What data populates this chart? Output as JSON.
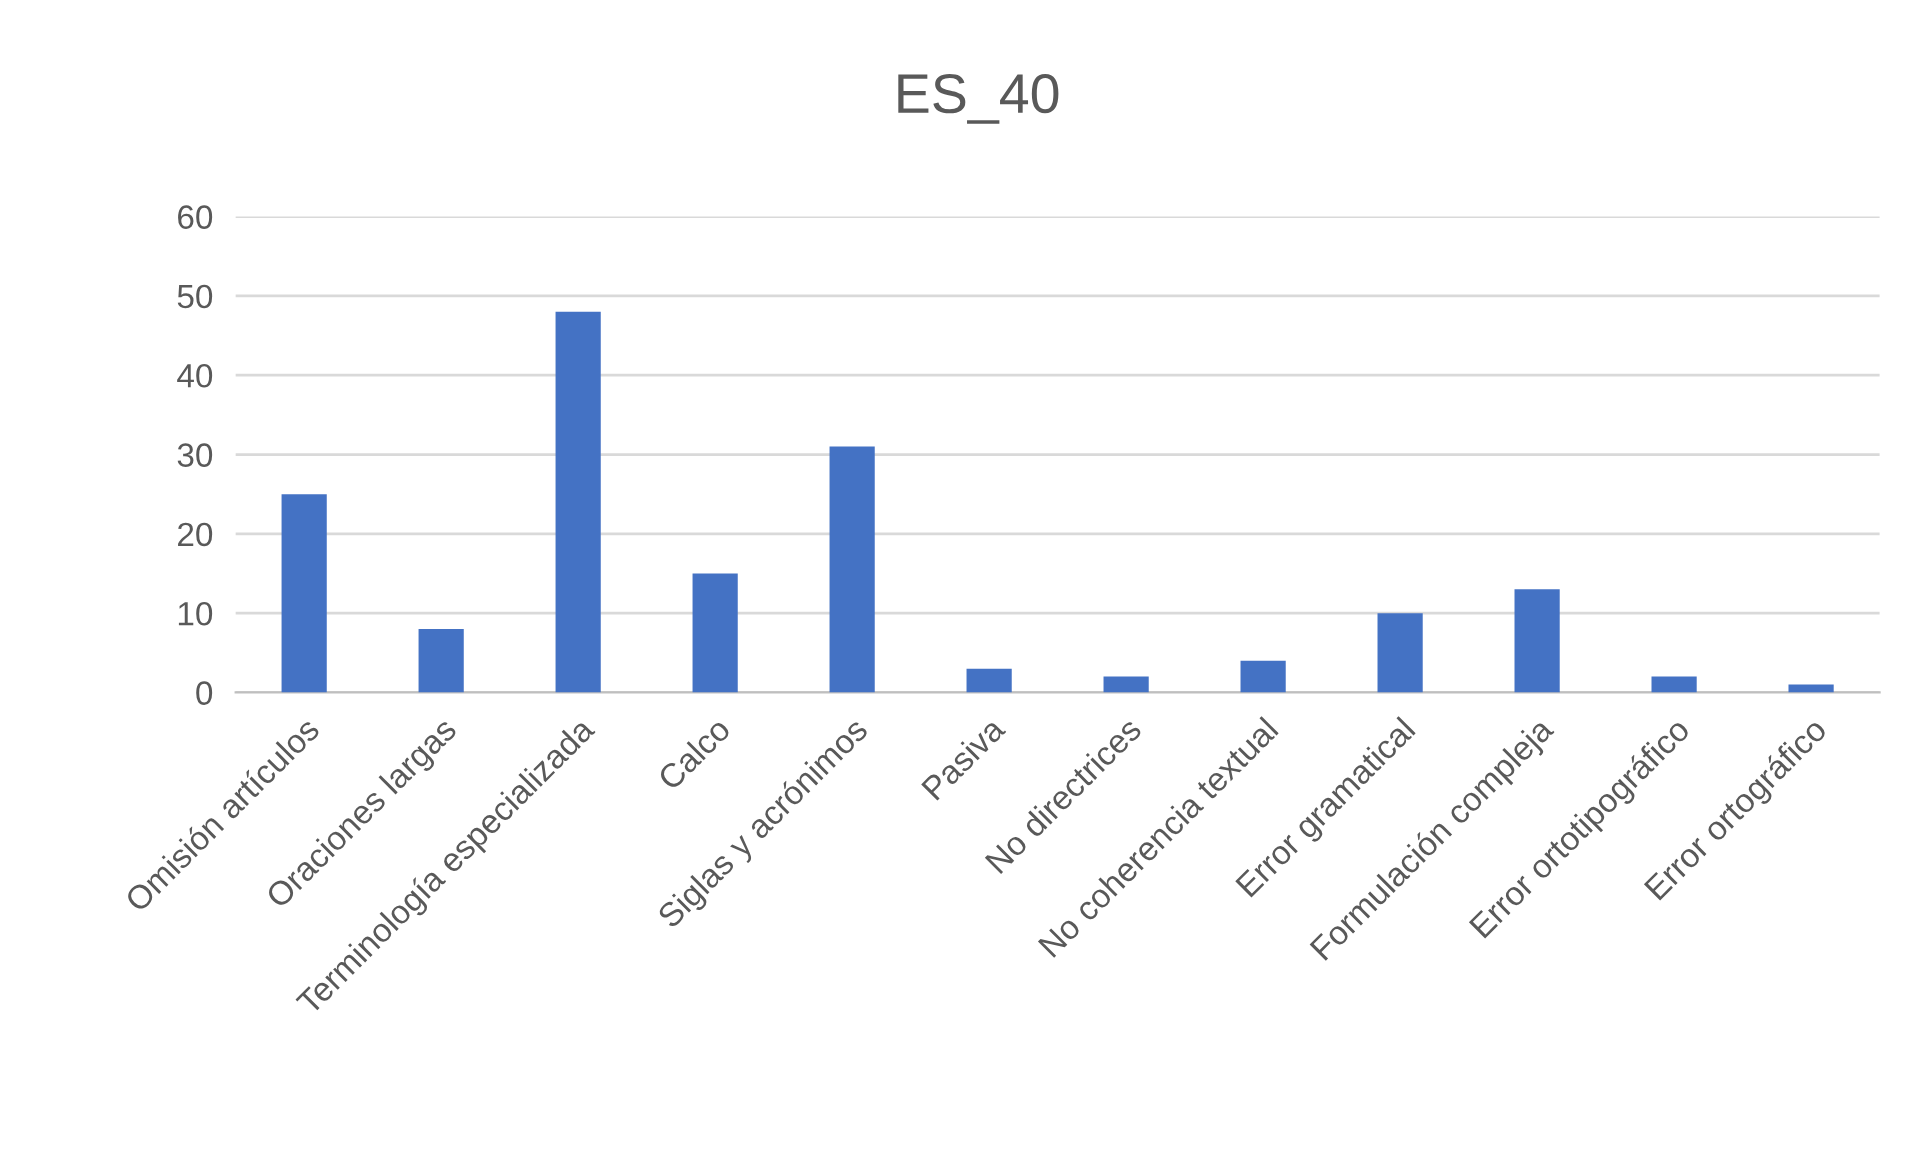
{
  "chart_data": {
    "type": "bar",
    "title": "ES_40",
    "categories": [
      "Omisión artículos",
      "Oraciones largas",
      "Terminología especializada",
      "Calco",
      "Siglas y acrónimos",
      "Pasiva",
      "No directrices",
      "No coherencia textual",
      "Error gramatical",
      "Formulación compleja",
      "Error ortotipográfico",
      "Error ortográfico"
    ],
    "values": [
      25,
      8,
      48,
      15,
      31,
      3,
      2,
      4,
      10,
      13,
      2,
      1
    ],
    "color": "#4472c4",
    "ylim": [
      0,
      60
    ],
    "yticks": [
      0,
      10,
      20,
      30,
      40,
      50,
      60
    ],
    "grid": "y"
  }
}
